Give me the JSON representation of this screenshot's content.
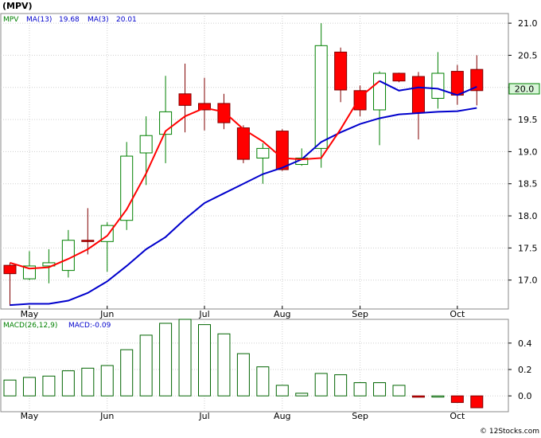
{
  "title": "(MPV)",
  "footer": "© 12Stocks.com",
  "colors": {
    "up_fill": "#ffffff",
    "up_stroke": "#008000",
    "down_fill": "#ff0000",
    "down_stroke": "#800000",
    "ma_short": "#ff0000",
    "ma_long": "#0000cc",
    "ma_short_after": "#0000cc",
    "macd_stroke": "#006400",
    "macd_neg_fill": "#ff0000",
    "grid": "#cfcfcf",
    "price_tag_fill": "#d8f5d8",
    "price_tag_stroke": "#008000"
  },
  "chart_data": [
    {
      "type": "candlestick",
      "legend": {
        "symbol": "MPV",
        "ma13_label": "MA(13)",
        "ma13_value": "19.68",
        "ma3_label": "MA(3)",
        "ma3_value": "20.01"
      },
      "price_tag": "20.0",
      "ylim": [
        16.55,
        21.15
      ],
      "yticks": [
        17.0,
        17.5,
        18.0,
        18.5,
        19.0,
        19.5,
        20.0,
        20.5,
        21.0
      ],
      "ytick_labels": [
        "17.0",
        "17.5",
        "18.0",
        "18.5",
        "19.0",
        "19.5",
        "20.0",
        "20.5",
        "21.0"
      ],
      "xlabels": [
        {
          "label": "May",
          "index": 1
        },
        {
          "label": "Jun",
          "index": 5
        },
        {
          "label": "Jul",
          "index": 10
        },
        {
          "label": "Aug",
          "index": 14
        },
        {
          "label": "Sep",
          "index": 18
        },
        {
          "label": "Oct",
          "index": 23
        }
      ],
      "candles": [
        {
          "o": 17.23,
          "h": 17.27,
          "l": 16.6,
          "c": 17.1
        },
        {
          "o": 17.02,
          "h": 17.45,
          "l": 17.0,
          "c": 17.22
        },
        {
          "o": 17.22,
          "h": 17.48,
          "l": 16.95,
          "c": 17.27
        },
        {
          "o": 17.15,
          "h": 17.78,
          "l": 17.04,
          "c": 17.62
        },
        {
          "o": 17.62,
          "h": 18.12,
          "l": 17.4,
          "c": 17.6
        },
        {
          "o": 17.6,
          "h": 17.9,
          "l": 17.13,
          "c": 17.85
        },
        {
          "o": 17.93,
          "h": 19.15,
          "l": 17.78,
          "c": 18.93
        },
        {
          "o": 18.98,
          "h": 19.55,
          "l": 18.48,
          "c": 19.25
        },
        {
          "o": 19.27,
          "h": 20.18,
          "l": 18.82,
          "c": 19.62
        },
        {
          "o": 19.9,
          "h": 20.37,
          "l": 19.3,
          "c": 19.72
        },
        {
          "o": 19.75,
          "h": 20.15,
          "l": 19.33,
          "c": 19.65
        },
        {
          "o": 19.75,
          "h": 19.9,
          "l": 19.35,
          "c": 19.45
        },
        {
          "o": 19.37,
          "h": 19.41,
          "l": 18.82,
          "c": 18.88
        },
        {
          "o": 18.9,
          "h": 19.13,
          "l": 18.5,
          "c": 19.05
        },
        {
          "o": 19.32,
          "h": 19.35,
          "l": 18.7,
          "c": 18.72
        },
        {
          "o": 18.8,
          "h": 19.05,
          "l": 18.78,
          "c": 18.9
        },
        {
          "o": 19.05,
          "h": 21.0,
          "l": 18.75,
          "c": 20.65
        },
        {
          "o": 20.55,
          "h": 20.62,
          "l": 19.77,
          "c": 19.96
        },
        {
          "o": 19.95,
          "h": 20.03,
          "l": 19.55,
          "c": 19.65
        },
        {
          "o": 19.65,
          "h": 20.25,
          "l": 19.1,
          "c": 20.22
        },
        {
          "o": 20.22,
          "h": 20.23,
          "l": 20.08,
          "c": 20.1
        },
        {
          "o": 20.17,
          "h": 20.24,
          "l": 19.19,
          "c": 19.6
        },
        {
          "o": 19.83,
          "h": 20.55,
          "l": 19.67,
          "c": 20.22
        },
        {
          "o": 20.25,
          "h": 20.35,
          "l": 19.73,
          "c": 19.88
        },
        {
          "o": 20.28,
          "h": 20.5,
          "l": 19.72,
          "c": 19.95
        }
      ],
      "ma3": [
        17.27,
        17.18,
        17.2,
        17.33,
        17.48,
        17.69,
        18.1,
        18.66,
        19.32,
        19.55,
        19.68,
        19.62,
        19.35,
        19.16,
        18.9,
        18.88,
        18.9,
        19.35,
        19.85,
        20.1,
        19.95,
        20.0,
        19.98,
        19.88,
        20.01
      ],
      "ma3_red_segments": 19,
      "ma13": [
        16.61,
        16.63,
        16.63,
        16.68,
        16.8,
        16.98,
        17.22,
        17.48,
        17.67,
        17.95,
        18.2,
        18.35,
        18.5,
        18.65,
        18.75,
        18.88,
        19.15,
        19.3,
        19.43,
        19.52,
        19.58,
        19.6,
        19.62,
        19.63,
        19.68
      ]
    },
    {
      "type": "bar",
      "legend": {
        "label": "MACD(26,12,9)",
        "value_label": "MACD:-0.09"
      },
      "ylim": [
        -0.12,
        0.58
      ],
      "yticks": [
        0.0,
        0.2,
        0.4
      ],
      "ytick_labels": [
        "0.0",
        "0.2",
        "0.4"
      ],
      "xlabels": [
        {
          "label": "May",
          "index": 1
        },
        {
          "label": "Jun",
          "index": 5
        },
        {
          "label": "Jul",
          "index": 10
        },
        {
          "label": "Aug",
          "index": 14
        },
        {
          "label": "Sep",
          "index": 18
        },
        {
          "label": "Oct",
          "index": 23
        }
      ],
      "values": [
        0.12,
        0.14,
        0.15,
        0.19,
        0.21,
        0.23,
        0.35,
        0.46,
        0.55,
        0.58,
        0.54,
        0.47,
        0.32,
        0.22,
        0.08,
        0.02,
        0.17,
        0.16,
        0.1,
        0.1,
        0.08,
        -0.01,
        0.0,
        -0.05,
        -0.09
      ]
    }
  ]
}
